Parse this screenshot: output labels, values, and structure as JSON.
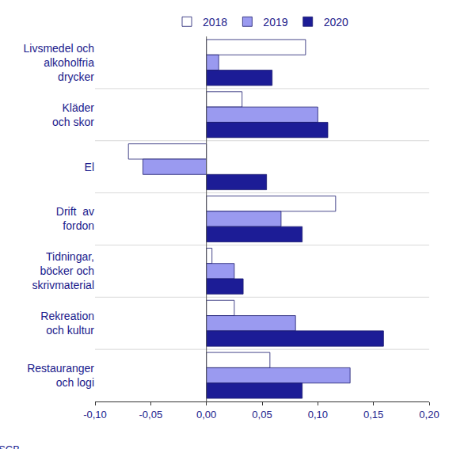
{
  "chart_data": {
    "type": "bar",
    "orientation": "horizontal",
    "categories": [
      "Livsmedel och\nalkoholfria\ndrycker",
      "Kläder\noch skor",
      "El",
      "Drift  av\nfordon",
      "Tidningar,\nböcker och\nskrivmaterial",
      "Rekreation\noch kultur",
      "Restauranger\noch logi"
    ],
    "series": [
      {
        "name": "2018",
        "color": "#ffffff",
        "values": [
          0.089,
          0.032,
          -0.07,
          0.116,
          0.005,
          0.025,
          0.057
        ]
      },
      {
        "name": "2019",
        "color": "#9a9af0",
        "values": [
          0.011,
          0.1,
          -0.057,
          0.067,
          0.025,
          0.08,
          0.129
        ]
      },
      {
        "name": "2020",
        "color": "#1c1c96",
        "values": [
          0.059,
          0.109,
          0.054,
          0.086,
          0.033,
          0.159,
          0.086
        ]
      }
    ],
    "xlim": [
      -0.1,
      0.2
    ],
    "xticks": [
      {
        "value": -0.1,
        "label": "-0,10"
      },
      {
        "value": -0.05,
        "label": "-0,05"
      },
      {
        "value": 0,
        "label": "0,00"
      },
      {
        "value": 0.05,
        "label": "0,05"
      },
      {
        "value": 0.1,
        "label": "0,10"
      },
      {
        "value": 0.15,
        "label": "0,15"
      },
      {
        "value": 0.2,
        "label": "0,20"
      }
    ],
    "grid": false,
    "legend": "top",
    "annotations": [
      "Källa: SCB"
    ]
  }
}
